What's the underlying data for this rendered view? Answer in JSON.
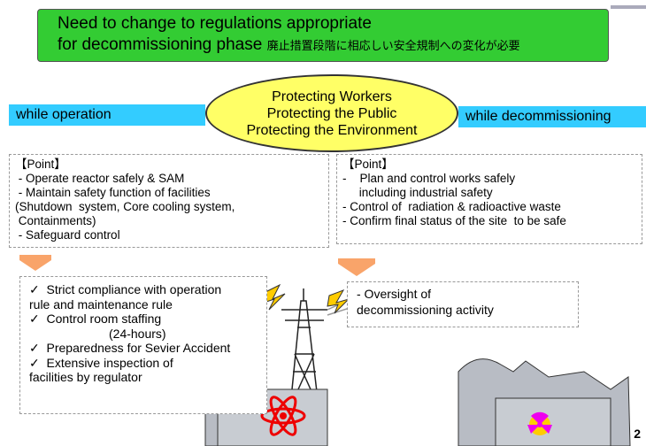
{
  "banner": {
    "line1": "Need to change to regulations appropriate",
    "line2": "for decommissioning phase",
    "line2_jp": "廃止措置段階に相応しい安全規制への変化が必要"
  },
  "left_label": "while operation",
  "right_label": "while decommissioning",
  "center": [
    "Protecting Workers",
    "Protecting the Public",
    "Protecting the Environment"
  ],
  "left_point": {
    "title": "【Point】",
    "lines": [
      " - Operate reactor safely & SAM",
      " - Maintain safety function of facilities",
      "(Shutdown  system, Core cooling system,",
      " Containments)",
      " - Safeguard control"
    ]
  },
  "right_point": {
    "title": "【Point】",
    "lines": [
      "-    Plan and control works safely",
      "     including industrial safety",
      "- Control of  radiation & radioactive waste",
      "- Confirm final status of the site  to be safe"
    ]
  },
  "operation_items": [
    [
      "Strict compliance with operation",
      "rule and maintenance rule"
    ],
    [
      "Control room staffing",
      "(24-hours)"
    ],
    [
      "Preparedness for Sevier Accident"
    ],
    [
      "Extensive inspection of",
      "facilities by regulator"
    ]
  ],
  "oversight": [
    "- Oversight of",
    "decommissioning activity"
  ],
  "page_number": "2"
}
